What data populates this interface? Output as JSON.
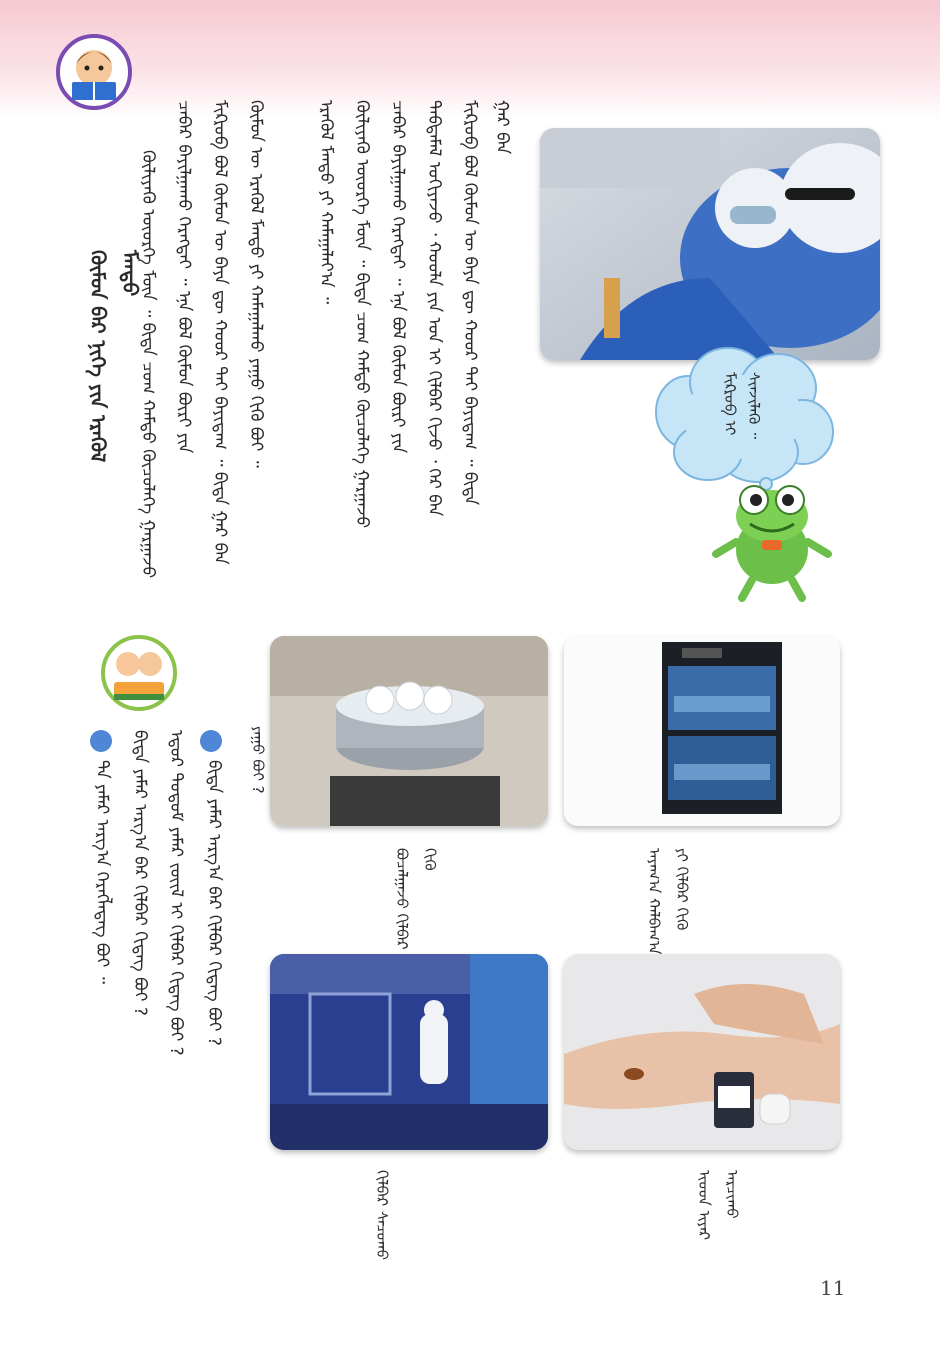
{
  "page": {
    "number": "11",
    "colors": {
      "band": "#f6c9d2",
      "bullet": "#4f86d6",
      "cloud": "#c6e6f8"
    }
  },
  "body_text": {
    "title": "ᠬᠦᠮᠦᠨ ᠪᠡᠷ ᠨᠢᠭᠡ ᠶᠢᠨ ᠡᠷᠡᠭᠦᠯ ᠮᠡᠨᠳᠦ",
    "paragraph": [
      "ᠮᠢᠺᠷᠣᠪ ᠪᠣᠯ ᠬᠦᠮᠦᠨ ᠦ ᠪᠡᠶᠡ ᠳᠦ ᠬᠣᠣᠷ ᠲᠠᠢ ᠪᠠᠶᠢᠳᠠᠭ ᠃ ᠪᠢᠳᠡ ᠭᠠᠷ ᠪᠠᠨ",
      "ᠳᠠᠪᠲᠠᠮᠠᠯ ᠤᠭᠢᠶᠠᠵᠤ ᠂ ᠬᠣᠣᠯᠠ ᠶᠢᠨ ᠡᠳ ᠢ ᠬᠢᠯᠪᠡᠷ ᠬᠢᠵᠦ ᠂ ᠭᠡᠷ ᠪᠠᠨ",
      "ᠴᠡᠪᠡᠷ ᠪᠠᠶᠢᠯᠭᠠᠬᠤ ᠬᠡᠷᠡᠭᠲᠡᠢ ᠃ ᠡᠨᠡ ᠪᠣᠯ ᠬᠦᠮᠦᠨ ᠪᠦᠷᠢ ᠶᠢᠨ",
      "ᠬᠦᠯᠢᠶᠡᠬᠦ ᠦᠦᠷᠭᠡ ᠮᠦᠨ ᠃ ᠪᠢᠳᠡ ᠴᠤᠭ ᠬᠠᠮᠲᠤ ᠬᠦᠴᠦᠯᠡᠭᠡ ᠭᠠᠷᠭᠠᠵᠤ",
      "ᠡᠷᠡᠭᠦᠯ ᠮᠡᠨᠳᠦ ᠶᠢ ᠬᠠᠮᠠᠭᠠᠯᠠᠶ᠎ᠠ ᠃"
    ],
    "bottom_column": "ᠬᠦᠮᠦᠨ ᠦ ᠡᠷᠡᠭᠦᠯ ᠮᠡᠨᠳᠦ ᠶᠢ ᠬᠠᠮᠠᠭᠠᠯᠬᠤ ᠶᠠᠭᠤ ᠬᠢᠬᠦ ᠪᠤᠢ ᠃"
  },
  "frog_bubble": "ᠮᠢᠺᠷᠣᠪ ᠢ ᠰᠢᠨᠵᠢᠯᠡᠬᠦ ᠃",
  "captions": {
    "cabinet": "ᠠᠶᠠᠭ᠎ᠠ ᠬᠠᠯᠪᠠᠭ᠎ᠠ ᠶᠢ ᠬᠢᠯᠪᠡᠷ ᠬᠢᠬᠦ",
    "pot": "ᠪᠤᠴᠠᠯᠭᠠᠵᠤ ᠬᠢᠯᠪᠡᠷ ᠬᠢᠬᠦ",
    "pot_question": "ᠶᠠᠭᠤ ᠪᠤᠢ ?",
    "iodine": "ᠢᠣᠳ ᠢᠶᠠᠷ ᠠᠷᠴᠢᠬᠤ",
    "sprayer": "ᠬᠢᠯᠪᠡᠷ ᠰᠠᠴᠤᠬᠤ"
  },
  "questions": {
    "q1_line1": "ᠪᠢᠳᠡ ᠶᠠᠮᠠᠷ ᠠᠷᠭ᠎ᠠ ᠪᠠᠷ ᠬᠢᠯᠪᠡᠷ ᠬᠢᠳᠡᠭ ᠪᠤᠢ ?",
    "q1_line2": "ᠡᠳᠦᠷ ᠲᠤᠲᠤᠮ ᠶᠠᠮᠠᠷ ᠵᠦᠢᠯ ᠢ ᠬᠢᠯᠪᠡᠷ ᠬᠢᠳᠡᠭ ᠪᠤᠢ ?",
    "q2": "ᠲᠠ ᠶᠠᠮᠠᠷ ᠠᠷᠭ᠎ᠠ ᠬᠡᠷᠡᠭᠯᠡᠳᠡᠭ ᠪᠤᠢ ᠃"
  }
}
